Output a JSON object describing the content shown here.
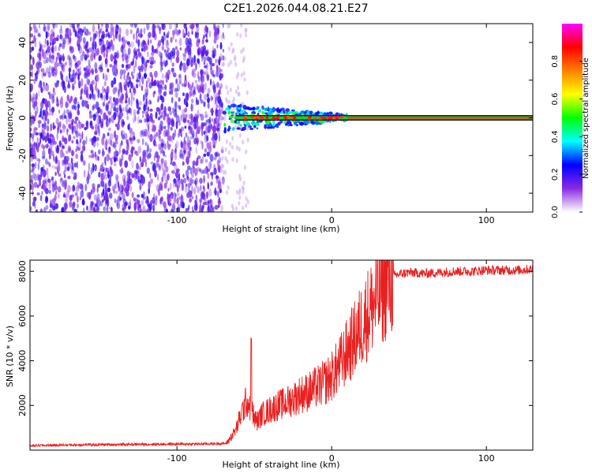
{
  "title": "C2E1.2026.044.08.21.E27",
  "chart_data": [
    {
      "type": "heatmap",
      "name": "spectrogram",
      "xlabel": "Height of straight line (km)",
      "ylabel": "Frequency (Hz)",
      "xlim": [
        -195,
        130
      ],
      "ylim": [
        -50,
        50
      ],
      "xticks": [
        -100,
        0,
        100
      ],
      "xtick_labels": [
        "-100",
        "0",
        "100"
      ],
      "yticks": [
        -40,
        -20,
        0,
        20,
        40
      ],
      "ytick_labels": [
        "-40",
        "-20",
        "0",
        "20",
        "40"
      ],
      "noise_region_x": [
        -195,
        -70
      ],
      "transition_region_x": [
        -70,
        10
      ],
      "carrier_region_x": [
        10,
        130
      ],
      "carrier_frequency": 0,
      "colorbar": {
        "label": "Normalized spectral amplitude",
        "range": [
          0.0,
          1.0
        ],
        "ticks": [
          0.0,
          0.2,
          0.4,
          0.6,
          0.8
        ],
        "tick_labels": [
          "0.0",
          "0.2",
          "0.4",
          "0.6",
          "0.8"
        ],
        "colors": [
          "#ffffff",
          "#8a2be2",
          "#0000ff",
          "#00ffff",
          "#00ff00",
          "#ffff00",
          "#ff8000",
          "#ff0000",
          "#ff00ff"
        ]
      }
    },
    {
      "type": "line",
      "name": "snr",
      "xlabel": "Height of straight line (km)",
      "ylabel": "SNR (10 * v/v)",
      "xlim": [
        -195,
        130
      ],
      "ylim": [
        0,
        8500
      ],
      "xticks": [
        -100,
        0,
        100
      ],
      "xtick_labels": [
        "-100",
        "0",
        "100"
      ],
      "yticks": [
        2000,
        4000,
        6000,
        8000
      ],
      "ytick_labels": [
        "2000",
        "4000",
        "6000",
        "8000"
      ],
      "color": "#e82020",
      "series": [
        {
          "name": "SNR",
          "x": [
            -195,
            -180,
            -160,
            -140,
            -120,
            -100,
            -80,
            -68,
            -62,
            -58,
            -55,
            -52,
            -50,
            -48,
            -45,
            -40,
            -35,
            -30,
            -25,
            -20,
            -15,
            -10,
            -5,
            0,
            5,
            10,
            15,
            20,
            25,
            30,
            35,
            40,
            45,
            50,
            60,
            70,
            80,
            90,
            100,
            110,
            120,
            130
          ],
          "y": [
            200,
            220,
            240,
            250,
            260,
            270,
            280,
            300,
            900,
            1700,
            2200,
            1900,
            1400,
            1300,
            1600,
            1800,
            2000,
            2100,
            2300,
            2500,
            2600,
            2800,
            3000,
            3300,
            3800,
            4400,
            5000,
            5700,
            6300,
            6900,
            7400,
            7800,
            7900,
            7950,
            7900,
            7950,
            8000,
            8000,
            8050,
            8050,
            8050,
            8100
          ],
          "spike_x": -52,
          "spike_y": 5000
        }
      ]
    }
  ]
}
